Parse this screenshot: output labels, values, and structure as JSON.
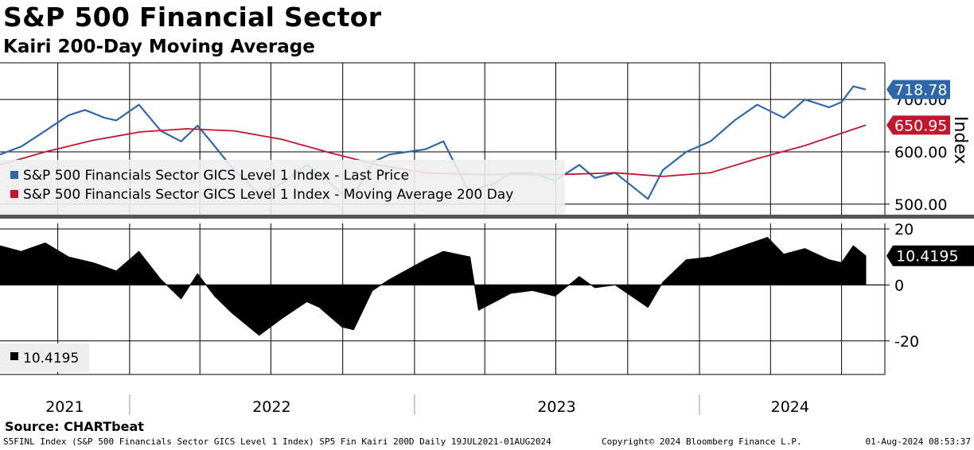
{
  "title": "S&P 500 Financial Sector",
  "subtitle": "Kairi 200-Day Moving Average",
  "source": "Source: CHARTbeat",
  "footer": {
    "left": "S5FINL Index (S&P 500 Financials Sector GICS Level 1 Index) SP5 Fin Kairi 200D  Daily 19JUL2021-01AUG2024",
    "center": "Copyright© 2024 Bloomberg Finance L.P.",
    "right": "01-Aug-2024 08:53:37"
  },
  "colors": {
    "price": "#2f68a8",
    "ma": "#c0162e",
    "kairi": "#000000",
    "legend_bg": "#eeeeee",
    "grid": "#000000"
  },
  "chart_data": [
    {
      "type": "line",
      "ylabel": "Index",
      "ylim": [
        480,
        770
      ],
      "y_ticks": [
        "500.00",
        "600.00",
        "700.00"
      ],
      "x_ticks": [
        "2021",
        "2022",
        "2023",
        "2024"
      ],
      "grid": true,
      "legend_position": "bottom-left",
      "last_value_labels": [
        "718.78",
        "650.95"
      ],
      "series": [
        {
          "name": "S&P 500 Financials Sector GICS Level 1 Index - Last Price",
          "color": "#2f68a8",
          "x": [
            "2021-07-19",
            "2021-08-15",
            "2021-09-15",
            "2021-10-15",
            "2021-11-05",
            "2021-11-30",
            "2021-12-15",
            "2022-01-13",
            "2022-02-10",
            "2022-03-08",
            "2022-03-29",
            "2022-04-15",
            "2022-05-12",
            "2022-06-16",
            "2022-07-15",
            "2022-08-16",
            "2022-09-01",
            "2022-09-30",
            "2022-10-15",
            "2022-11-08",
            "2022-11-30",
            "2023-01-15",
            "2023-02-07",
            "2023-03-13",
            "2023-03-24",
            "2023-04-14",
            "2023-05-04",
            "2023-06-01",
            "2023-06-30",
            "2023-07-31",
            "2023-08-20",
            "2023-09-15",
            "2023-10-27",
            "2023-11-15",
            "2023-12-15",
            "2024-01-15",
            "2024-02-15",
            "2024-03-15",
            "2024-04-18",
            "2024-05-15",
            "2024-06-15",
            "2024-07-01",
            "2024-07-16",
            "2024-08-01"
          ],
          "values": [
            595,
            610,
            640,
            670,
            680,
            665,
            660,
            690,
            640,
            620,
            650,
            620,
            570,
            520,
            540,
            575,
            560,
            520,
            515,
            580,
            595,
            605,
            620,
            520,
            530,
            540,
            560,
            560,
            545,
            575,
            550,
            560,
            510,
            565,
            600,
            620,
            660,
            690,
            665,
            700,
            685,
            695,
            725,
            719
          ]
        },
        {
          "name": "S&P 500 Financials Sector GICS Level 1 Index - Moving Average 200 Day",
          "color": "#c0162e",
          "x": [
            "2021-07-19",
            "2021-09-15",
            "2021-11-15",
            "2022-01-15",
            "2022-03-15",
            "2022-05-15",
            "2022-07-15",
            "2022-09-15",
            "2022-11-15",
            "2023-01-15",
            "2023-03-15",
            "2023-05-15",
            "2023-07-15",
            "2023-09-15",
            "2023-11-15",
            "2024-01-15",
            "2024-03-15",
            "2024-05-15",
            "2024-08-01"
          ],
          "values": [
            575,
            600,
            622,
            638,
            644,
            640,
            624,
            598,
            575,
            560,
            557,
            557,
            557,
            560,
            553,
            560,
            587,
            612,
            651
          ]
        }
      ]
    },
    {
      "type": "area",
      "ylim": [
        -32,
        22
      ],
      "y_ticks": [
        "20",
        "0",
        "-20"
      ],
      "grid": true,
      "legend_position": "bottom-left",
      "last_value_labels": [
        "10.4195"
      ],
      "series": [
        {
          "name": "10.4195",
          "color": "#000000",
          "x": [
            "2021-07-19",
            "2021-08-15",
            "2021-09-15",
            "2021-10-15",
            "2021-11-15",
            "2021-12-15",
            "2022-01-13",
            "2022-02-10",
            "2022-03-08",
            "2022-03-29",
            "2022-04-20",
            "2022-05-12",
            "2022-06-16",
            "2022-07-15",
            "2022-08-16",
            "2022-09-01",
            "2022-09-30",
            "2022-10-15",
            "2022-11-08",
            "2022-11-30",
            "2023-01-15",
            "2023-02-07",
            "2023-03-13",
            "2023-03-24",
            "2023-04-14",
            "2023-05-04",
            "2023-06-01",
            "2023-06-30",
            "2023-07-31",
            "2023-08-20",
            "2023-09-15",
            "2023-10-27",
            "2023-11-15",
            "2023-12-15",
            "2024-01-15",
            "2024-02-15",
            "2024-03-28",
            "2024-04-18",
            "2024-05-15",
            "2024-06-15",
            "2024-07-01",
            "2024-07-16",
            "2024-08-01"
          ],
          "values": [
            14,
            12,
            15,
            10,
            8,
            5,
            12,
            2,
            -5,
            4,
            -4,
            -10,
            -18,
            -12,
            -6,
            -8,
            -15,
            -16,
            -2,
            2,
            9,
            12,
            10,
            -9,
            -6,
            -3,
            -2,
            -4,
            3,
            -1,
            0,
            -8,
            1,
            9,
            10,
            13,
            17,
            11,
            13,
            9,
            8,
            14,
            10.4195
          ]
        }
      ]
    }
  ]
}
